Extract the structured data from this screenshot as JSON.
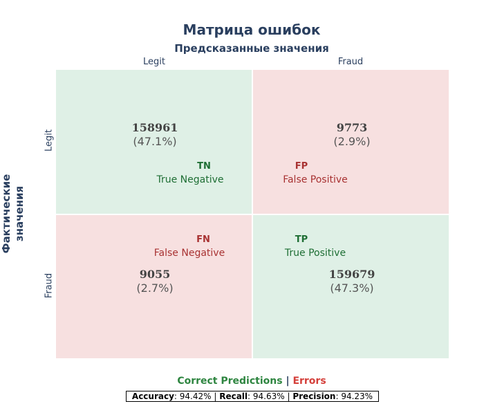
{
  "chart_data": {
    "type": "heatmap",
    "title": "Матрица ошибок",
    "xlabel": "Предсказанные значения",
    "ylabel_line1": "Фактические",
    "ylabel_line2": "значения",
    "x_categories": [
      "Legit",
      "Fraud"
    ],
    "y_categories": [
      "Legit",
      "Fraud"
    ],
    "cells": [
      {
        "row": 0,
        "col": 0,
        "value": 158961,
        "percent": "(47.1%)",
        "abbr": "TN",
        "desc": "True Negative",
        "kind": "correct"
      },
      {
        "row": 0,
        "col": 1,
        "value": 9773,
        "percent": "(2.9%)",
        "abbr": "FP",
        "desc": "False Positive",
        "kind": "error"
      },
      {
        "row": 1,
        "col": 0,
        "value": 9055,
        "percent": "(2.7%)",
        "abbr": "FN",
        "desc": "False Negative",
        "kind": "error"
      },
      {
        "row": 1,
        "col": 1,
        "value": 159679,
        "percent": "(47.3%)",
        "abbr": "TP",
        "desc": "True Positive",
        "kind": "correct"
      }
    ],
    "legend": {
      "correct_label": "Correct Predictions",
      "separator": "|",
      "error_label": "Errors"
    },
    "metrics": {
      "accuracy_label": "Accuracy",
      "accuracy_value": "94.42%",
      "recall_label": "Recall",
      "recall_value": "94.63%",
      "precision_label": "Precision",
      "precision_value": "94.23%"
    }
  },
  "colors": {
    "correct_fill": "#dff0e6",
    "error_fill": "#f7e0e0",
    "correct_text": "#1e6e34",
    "error_text": "#a83232",
    "correct_legend": "#2e8540",
    "error_legend": "#d43f3a",
    "title": "#2a3f5f"
  }
}
